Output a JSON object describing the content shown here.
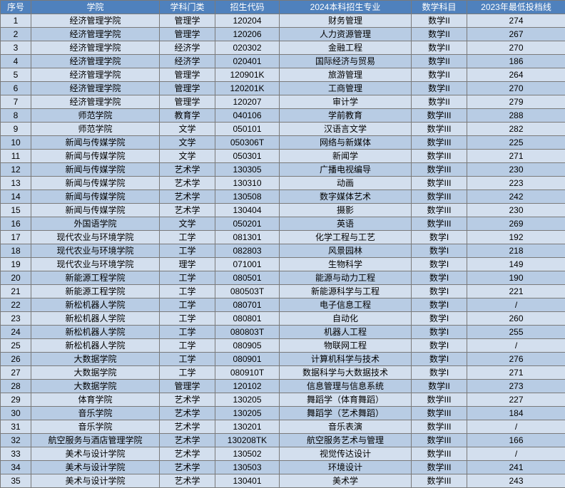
{
  "table": {
    "header_bg": "#4f81bd",
    "header_fg": "#ffffff",
    "row_even_bg": "#d3dfee",
    "row_odd_bg": "#b8cce4",
    "border_color": "#7a7a7a",
    "columns": [
      "序号",
      "学院",
      "学科门类",
      "招生代码",
      "2024本科招生专业",
      "数学科目",
      "2023年最低投档线"
    ],
    "rows": [
      [
        "1",
        "经济管理学院",
        "管理学",
        "120204",
        "财务管理",
        "数学II",
        "274"
      ],
      [
        "2",
        "经济管理学院",
        "管理学",
        "120206",
        "人力资源管理",
        "数学II",
        "267"
      ],
      [
        "3",
        "经济管理学院",
        "经济学",
        "020302",
        "金融工程",
        "数学II",
        "270"
      ],
      [
        "4",
        "经济管理学院",
        "经济学",
        "020401",
        "国际经济与贸易",
        "数学II",
        "186"
      ],
      [
        "5",
        "经济管理学院",
        "管理学",
        "120901K",
        "旅游管理",
        "数学II",
        "264"
      ],
      [
        "6",
        "经济管理学院",
        "管理学",
        "120201K",
        "工商管理",
        "数学II",
        "270"
      ],
      [
        "7",
        "经济管理学院",
        "管理学",
        "120207",
        "审计学",
        "数学II",
        "279"
      ],
      [
        "8",
        "师范学院",
        "教育学",
        "040106",
        "学前教育",
        "数学III",
        "288"
      ],
      [
        "9",
        "师范学院",
        "文学",
        "050101",
        "汉语言文学",
        "数学III",
        "282"
      ],
      [
        "10",
        "新闻与传媒学院",
        "文学",
        "050306T",
        "网络与新媒体",
        "数学III",
        "225"
      ],
      [
        "11",
        "新闻与传媒学院",
        "文学",
        "050301",
        "新闻学",
        "数学III",
        "271"
      ],
      [
        "12",
        "新闻与传媒学院",
        "艺术学",
        "130305",
        "广播电视编导",
        "数学III",
        "230"
      ],
      [
        "13",
        "新闻与传媒学院",
        "艺术学",
        "130310",
        "动画",
        "数学III",
        "223"
      ],
      [
        "14",
        "新闻与传媒学院",
        "艺术学",
        "130508",
        "数字媒体艺术",
        "数学III",
        "242"
      ],
      [
        "15",
        "新闻与传媒学院",
        "艺术学",
        "130404",
        "摄影",
        "数学III",
        "230"
      ],
      [
        "16",
        "外国语学院",
        "文学",
        "050201",
        "英语",
        "数学III",
        "269"
      ],
      [
        "17",
        "现代农业与环境学院",
        "工学",
        "081301",
        "化学工程与工艺",
        "数学I",
        "192"
      ],
      [
        "18",
        "现代农业与环境学院",
        "工学",
        "082803",
        "风景园林",
        "数学I",
        "218"
      ],
      [
        "19",
        "现代农业与环境学院",
        "理学",
        "071001",
        "生物科学",
        "数学I",
        "149"
      ],
      [
        "20",
        "新能源工程学院",
        "工学",
        "080501",
        "能源与动力工程",
        "数学I",
        "190"
      ],
      [
        "21",
        "新能源工程学院",
        "工学",
        "080503T",
        "新能源科学与工程",
        "数学I",
        "221"
      ],
      [
        "22",
        "新松机器人学院",
        "工学",
        "080701",
        "电子信息工程",
        "数学I",
        "/"
      ],
      [
        "23",
        "新松机器人学院",
        "工学",
        "080801",
        "自动化",
        "数学I",
        "260"
      ],
      [
        "24",
        "新松机器人学院",
        "工学",
        "080803T",
        "机器人工程",
        "数学I",
        "255"
      ],
      [
        "25",
        "新松机器人学院",
        "工学",
        "080905",
        "物联网工程",
        "数学I",
        "/"
      ],
      [
        "26",
        "大数据学院",
        "工学",
        "080901",
        "计算机科学与技术",
        "数学I",
        "276"
      ],
      [
        "27",
        "大数据学院",
        "工学",
        "080910T",
        "数据科学与大数据技术",
        "数学I",
        "271"
      ],
      [
        "28",
        "大数据学院",
        "管理学",
        "120102",
        "信息管理与信息系统",
        "数学II",
        "273"
      ],
      [
        "29",
        "体育学院",
        "艺术学",
        "130205",
        "舞蹈学（体育舞蹈）",
        "数学III",
        "227"
      ],
      [
        "30",
        "音乐学院",
        "艺术学",
        "130205",
        "舞蹈学（艺术舞蹈）",
        "数学III",
        "184"
      ],
      [
        "31",
        "音乐学院",
        "艺术学",
        "130201",
        "音乐表演",
        "数学III",
        "/"
      ],
      [
        "32",
        "航空服务与酒店管理学院",
        "艺术学",
        "130208TK",
        "航空服务艺术与管理",
        "数学III",
        "166"
      ],
      [
        "33",
        "美术与设计学院",
        "艺术学",
        "130502",
        "视觉传达设计",
        "数学III",
        "/"
      ],
      [
        "34",
        "美术与设计学院",
        "艺术学",
        "130503",
        "环境设计",
        "数学III",
        "241"
      ],
      [
        "35",
        "美术与设计学院",
        "艺术学",
        "130401",
        "美术学",
        "数学III",
        "243"
      ]
    ]
  }
}
